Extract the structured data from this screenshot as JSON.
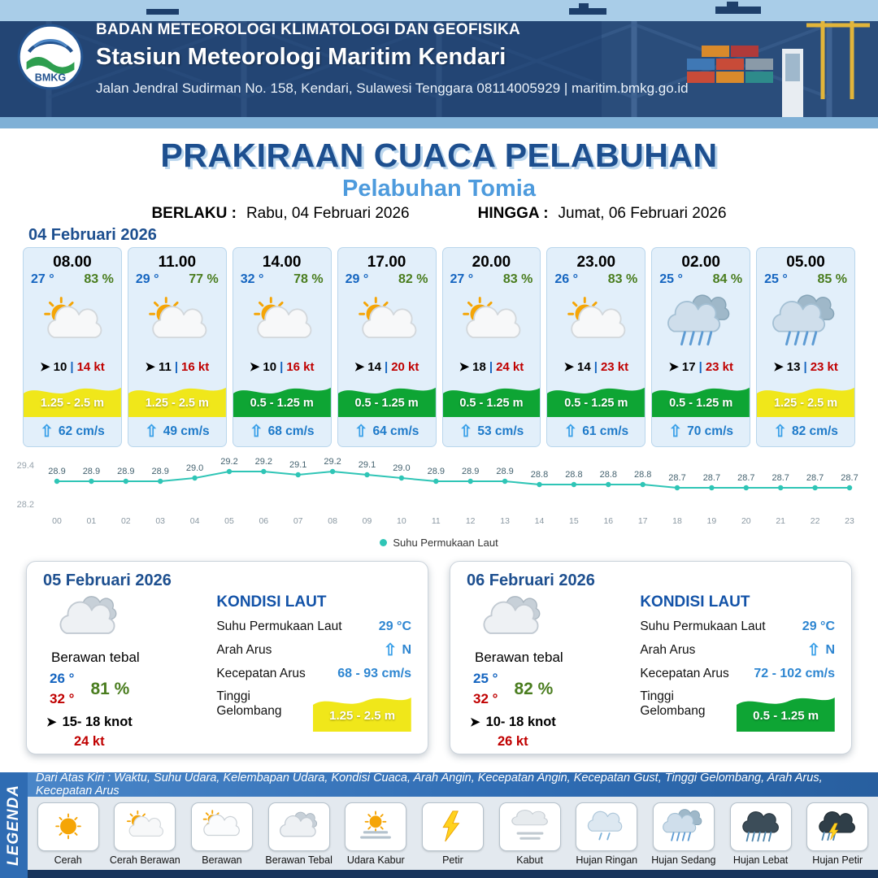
{
  "header": {
    "logo_text": "BMKG",
    "agency": "BADAN METEOROLOGI KLIMATOLOGI DAN GEOFISIKA",
    "station": "Stasiun Meteorologi Maritim Kendari",
    "address": "Jalan Jendral Sudirman No. 158, Kendari, Sulawesi Tenggara  08114005929 | maritim.bmkg.go.id"
  },
  "title": {
    "main": "PRAKIRAAN CUACA PELABUHAN",
    "subtitle": "Pelabuhan Tomia",
    "valid_from_label": "BERLAKU :",
    "valid_from": "Rabu, 04 Februari 2026",
    "valid_to_label": "HINGGA :",
    "valid_to": "Jumat, 06 Februari 2026"
  },
  "forecast": {
    "date": "04 Februari 2026",
    "cards": [
      {
        "time": "08.00",
        "temp": "27 °",
        "humidity": "83 %",
        "icon": "cerah-berawan",
        "wind": "10",
        "gust": "14 kt",
        "wave": "1.25 - 2.5 m",
        "wave_level": "yellow",
        "current": "62 cm/s"
      },
      {
        "time": "11.00",
        "temp": "29 °",
        "humidity": "77 %",
        "icon": "cerah-berawan",
        "wind": "11",
        "gust": "16 kt",
        "wave": "1.25 - 2.5 m",
        "wave_level": "yellow",
        "current": "49 cm/s"
      },
      {
        "time": "14.00",
        "temp": "32 °",
        "humidity": "78 %",
        "icon": "cerah-berawan",
        "wind": "10",
        "gust": "16 kt",
        "wave": "0.5 - 1.25 m",
        "wave_level": "green",
        "current": "68 cm/s"
      },
      {
        "time": "17.00",
        "temp": "29 °",
        "humidity": "82 %",
        "icon": "cerah-berawan",
        "wind": "14",
        "gust": "20 kt",
        "wave": "0.5 - 1.25 m",
        "wave_level": "green",
        "current": "64 cm/s"
      },
      {
        "time": "20.00",
        "temp": "27 °",
        "humidity": "83 %",
        "icon": "cerah-berawan",
        "wind": "18",
        "gust": "24 kt",
        "wave": "0.5 - 1.25 m",
        "wave_level": "green",
        "current": "53 cm/s"
      },
      {
        "time": "23.00",
        "temp": "26 °",
        "humidity": "83 %",
        "icon": "cerah-berawan",
        "wind": "14",
        "gust": "23 kt",
        "wave": "0.5 - 1.25 m",
        "wave_level": "green",
        "current": "61 cm/s"
      },
      {
        "time": "02.00",
        "temp": "25 °",
        "humidity": "84 %",
        "icon": "hujan-sedang",
        "wind": "17",
        "gust": "23 kt",
        "wave": "0.5 - 1.25 m",
        "wave_level": "green",
        "current": "70 cm/s"
      },
      {
        "time": "05.00",
        "temp": "25 °",
        "humidity": "85 %",
        "icon": "hujan-sedang",
        "wind": "13",
        "gust": "23 kt",
        "wave": "1.25 - 2.5 m",
        "wave_level": "yellow",
        "current": "82 cm/s"
      }
    ]
  },
  "chart_data": {
    "type": "line",
    "legend": "Suhu Permukaan Laut",
    "x": [
      "00",
      "01",
      "02",
      "03",
      "04",
      "05",
      "06",
      "07",
      "08",
      "09",
      "10",
      "11",
      "12",
      "13",
      "14",
      "15",
      "16",
      "17",
      "18",
      "19",
      "20",
      "21",
      "22",
      "23"
    ],
    "values": [
      28.9,
      28.9,
      28.9,
      28.9,
      29.0,
      29.2,
      29.2,
      29.1,
      29.2,
      29.1,
      29.0,
      28.9,
      28.9,
      28.9,
      28.8,
      28.8,
      28.8,
      28.8,
      28.7,
      28.7,
      28.7,
      28.7,
      28.7,
      28.7
    ],
    "ylim": [
      28.2,
      29.4
    ],
    "line_color": "#2fc5b6",
    "grid": false,
    "legend_position": "bottom"
  },
  "day_cards": [
    {
      "date": "05 Februari 2026",
      "condition": "Berawan tebal",
      "icon": "berawan-tebal",
      "temp_min": "26 °",
      "temp_max": "32 °",
      "humidity": "81 %",
      "wind": "15- 18 knot",
      "gust": "24 kt",
      "sea": {
        "heading": "KONDISI LAUT",
        "sst_label": "Suhu Permukaan Laut",
        "sst": "29 °C",
        "current_dir_label": "Arah Arus",
        "current_dir": "N",
        "current_speed_label": "Kecepatan Arus",
        "current_speed": "68 - 93 cm/s",
        "wave_label": "Tinggi Gelombang",
        "wave": "1.25 - 2.5 m",
        "wave_level": "yellow"
      }
    },
    {
      "date": "06 Februari 2026",
      "condition": "Berawan tebal",
      "icon": "berawan-tebal",
      "temp_min": "25 °",
      "temp_max": "32 °",
      "humidity": "82 %",
      "wind": "10- 18 knot",
      "gust": "26 kt",
      "sea": {
        "heading": "KONDISI LAUT",
        "sst_label": "Suhu Permukaan Laut",
        "sst": "29 °C",
        "current_dir_label": "Arah Arus",
        "current_dir": "N",
        "current_speed_label": "Kecepatan Arus",
        "current_speed": "72 - 102 cm/s",
        "wave_label": "Tinggi Gelombang",
        "wave": "0.5 - 1.25 m",
        "wave_level": "green"
      }
    }
  ],
  "legend": {
    "label": "LEGENDA",
    "info": "Dari Atas Kiri : Waktu, Suhu Udara, Kelembapan Udara, Kondisi Cuaca, Arah Angin, Kecepatan Angin, Kecepatan Gust, Tinggi Gelombang, Arah Arus, Kecepatan Arus",
    "items": [
      {
        "label": "Cerah",
        "icon": "cerah"
      },
      {
        "label": "Cerah Berawan",
        "icon": "cerah-berawan"
      },
      {
        "label": "Berawan",
        "icon": "berawan"
      },
      {
        "label": "Berawan Tebal",
        "icon": "berawan-tebal"
      },
      {
        "label": "Udara Kabur",
        "icon": "udara-kabur"
      },
      {
        "label": "Petir",
        "icon": "petir"
      },
      {
        "label": "Kabut",
        "icon": "kabut"
      },
      {
        "label": "Hujan Ringan",
        "icon": "hujan-ringan"
      },
      {
        "label": "Hujan Sedang",
        "icon": "hujan-sedang"
      },
      {
        "label": "Hujan Lebat",
        "icon": "hujan-lebat"
      },
      {
        "label": "Hujan Petir",
        "icon": "hujan-petir"
      }
    ]
  },
  "colors": {
    "accent_blue": "#1d4f8f",
    "subtitle_blue": "#4e9bdd",
    "temp_blue": "#1565c0",
    "temp_max_red": "#c00000",
    "humidity_green": "#4a7d1f",
    "gust_red": "#c00000",
    "wave_yellow": "#f0e71a",
    "wave_green": "#0ea534",
    "current_blue": "#1e7ac9",
    "chart_line": "#2fc5b6"
  }
}
